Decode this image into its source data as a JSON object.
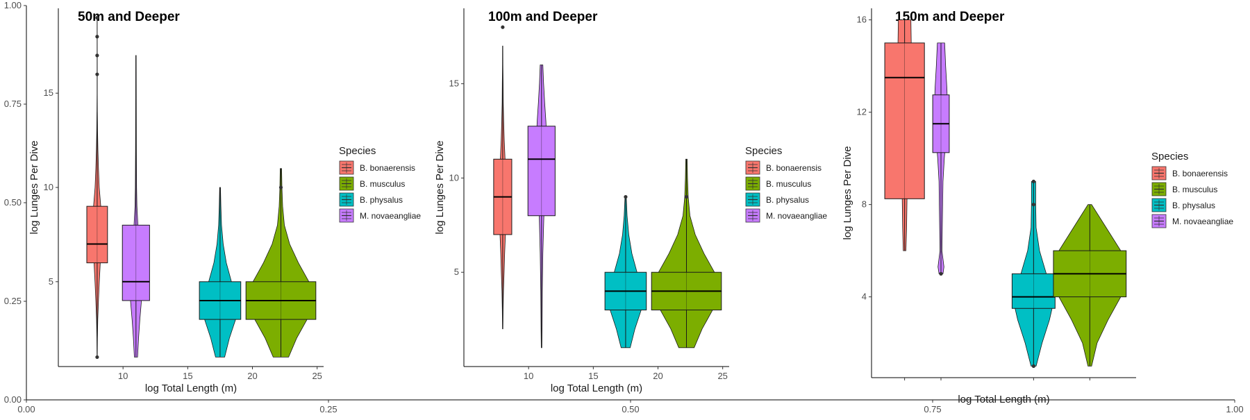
{
  "chart_data": {
    "type": "boxplot-violin",
    "outer_axes": {
      "x_ticks": [
        "0.00",
        "0.25",
        "0.50",
        "0.75",
        "1.00"
      ],
      "y_ticks": [
        "0.00",
        "0.25",
        "0.50",
        "0.75",
        "1.00"
      ],
      "xlim": [
        0,
        1
      ],
      "ylim": [
        0,
        1
      ]
    },
    "panels": [
      {
        "title": "50m and Deeper",
        "xlabel": "log Total Length (m)",
        "ylabel": "log Lunges Per Dive",
        "x_ticks": [
          "10",
          "15",
          "20",
          "25"
        ],
        "y_ticks": [
          "5",
          "10",
          "15"
        ],
        "xlim": [
          5,
          25.5
        ],
        "ylim": [
          0.5,
          19.5
        ],
        "legend": {
          "title": "Species",
          "entries": [
            "B. bonaerensis",
            "B. musculus",
            "B. physalus",
            "M. novaeangliae"
          ]
        },
        "series": [
          {
            "name": "B. bonaerensis",
            "color": "#F8766D",
            "x": 8,
            "box_width": 1.6,
            "violin_max_half_width": 0.4,
            "whisker_low": 1,
            "q1": 6,
            "median": 7,
            "q3": 9,
            "whisker_high": 14,
            "outliers": [
              1,
              16,
              17,
              18,
              19
            ],
            "violin": [
              [
                1,
                0.02
              ],
              [
                2,
                0.05
              ],
              [
                3,
                0.12
              ],
              [
                4,
                0.25
              ],
              [
                5,
                0.42
              ],
              [
                6,
                0.6
              ],
              [
                7,
                1.0
              ],
              [
                8,
                0.9
              ],
              [
                9,
                0.7
              ],
              [
                10,
                0.4
              ],
              [
                11,
                0.25
              ],
              [
                12,
                0.15
              ],
              [
                13,
                0.08
              ],
              [
                14,
                0.04
              ],
              [
                15,
                0.02
              ],
              [
                16,
                0.02
              ],
              [
                19,
                0.01
              ]
            ]
          },
          {
            "name": "M. novaeangliae",
            "color": "#C77CFF",
            "x": 11,
            "box_width": 2.1,
            "violin_max_half_width": 0.5,
            "whisker_low": 1,
            "q1": 4,
            "median": 5,
            "q3": 8,
            "whisker_high": 17,
            "outliers": [],
            "violin": [
              [
                1,
                0.25
              ],
              [
                2,
                0.4
              ],
              [
                3,
                0.6
              ],
              [
                4,
                0.85
              ],
              [
                5,
                1.0
              ],
              [
                6,
                0.8
              ],
              [
                7,
                0.5
              ],
              [
                8,
                0.3
              ],
              [
                9,
                0.15
              ],
              [
                10,
                0.1
              ],
              [
                12,
                0.06
              ],
              [
                15,
                0.04
              ],
              [
                17,
                0.03
              ]
            ]
          },
          {
            "name": "B. physalus",
            "color": "#00BFC4",
            "x": 17.5,
            "box_width": 3.2,
            "violin_max_half_width": 1.6,
            "whisker_low": 1,
            "q1": 3,
            "median": 4,
            "q3": 5,
            "whisker_high": 10,
            "outliers": [],
            "violin": [
              [
                1,
                0.22
              ],
              [
                2,
                0.45
              ],
              [
                3,
                0.75
              ],
              [
                4,
                1.0
              ],
              [
                5,
                0.55
              ],
              [
                6,
                0.3
              ],
              [
                7,
                0.15
              ],
              [
                8,
                0.07
              ],
              [
                9,
                0.04
              ],
              [
                10,
                0.02
              ]
            ]
          },
          {
            "name": "B. musculus",
            "color": "#7CAE00",
            "x": 22.2,
            "box_width": 5.4,
            "violin_max_half_width": 2.7,
            "whisker_low": 1,
            "q1": 3,
            "median": 4,
            "q3": 5,
            "whisker_high": 11,
            "outliers": [
              10
            ],
            "violin": [
              [
                1,
                0.22
              ],
              [
                2,
                0.45
              ],
              [
                3,
                0.75
              ],
              [
                4,
                1.0
              ],
              [
                5,
                0.8
              ],
              [
                6,
                0.5
              ],
              [
                7,
                0.25
              ],
              [
                8,
                0.1
              ],
              [
                9,
                0.05
              ],
              [
                10,
                0.03
              ],
              [
                11,
                0.02
              ]
            ]
          }
        ]
      },
      {
        "title": "100m and Deeper",
        "xlabel": "log Total Length (m)",
        "ylabel": "log Lunges Per Dive",
        "x_ticks": [
          "10",
          "15",
          "20",
          "25"
        ],
        "y_ticks": [
          "5",
          "10",
          "15"
        ],
        "xlim": [
          5,
          25.5
        ],
        "ylim": [
          0,
          19
        ],
        "legend": {
          "title": "Species",
          "entries": [
            "B. bonaerensis",
            "B. musculus",
            "B. physalus",
            "M. novaeangliae"
          ]
        },
        "series": [
          {
            "name": "B. bonaerensis",
            "color": "#F8766D",
            "x": 8,
            "box_width": 1.4,
            "violin_max_half_width": 0.3,
            "whisker_low": 2,
            "q1": 7,
            "median": 9,
            "q3": 11,
            "whisker_high": 17,
            "outliers": [
              18
            ],
            "violin": [
              [
                2,
                0.05
              ],
              [
                3,
                0.1
              ],
              [
                4,
                0.2
              ],
              [
                5,
                0.35
              ],
              [
                6,
                0.5
              ],
              [
                7,
                0.7
              ],
              [
                8,
                0.9
              ],
              [
                9,
                1.0
              ],
              [
                10,
                0.85
              ],
              [
                11,
                0.6
              ],
              [
                12,
                0.4
              ],
              [
                13,
                0.25
              ],
              [
                14,
                0.15
              ],
              [
                15,
                0.1
              ],
              [
                16,
                0.06
              ],
              [
                17,
                0.03
              ]
            ]
          },
          {
            "name": "M. novaeangliae",
            "color": "#C77CFF",
            "x": 11,
            "box_width": 2.1,
            "violin_max_half_width": 0.4,
            "whisker_low": 1,
            "q1": 8,
            "median": 11,
            "q3": 12.75,
            "whisker_high": 16,
            "outliers": [],
            "violin": [
              [
                1,
                0.06
              ],
              [
                2,
                0.1
              ],
              [
                4,
                0.15
              ],
              [
                6,
                0.25
              ],
              [
                8,
                0.45
              ],
              [
                10,
                0.7
              ],
              [
                11,
                0.9
              ],
              [
                12,
                1.0
              ],
              [
                13,
                0.85
              ],
              [
                14,
                0.6
              ],
              [
                15,
                0.4
              ],
              [
                16,
                0.25
              ]
            ]
          },
          {
            "name": "B. physalus",
            "color": "#00BFC4",
            "x": 17.5,
            "box_width": 3.2,
            "violin_max_half_width": 1.6,
            "whisker_low": 1,
            "q1": 3,
            "median": 4,
            "q3": 5,
            "whisker_high": 9,
            "outliers": [
              9
            ],
            "violin": [
              [
                1,
                0.22
              ],
              [
                2,
                0.45
              ],
              [
                3,
                0.75
              ],
              [
                4,
                1.0
              ],
              [
                5,
                0.55
              ],
              [
                6,
                0.3
              ],
              [
                7,
                0.15
              ],
              [
                8,
                0.07
              ],
              [
                9,
                0.03
              ]
            ]
          },
          {
            "name": "B. musculus",
            "color": "#7CAE00",
            "x": 22.2,
            "box_width": 5.4,
            "violin_max_half_width": 2.7,
            "whisker_low": 1,
            "q1": 3,
            "median": 4,
            "q3": 5,
            "whisker_high": 11,
            "outliers": [
              9
            ],
            "violin": [
              [
                1,
                0.22
              ],
              [
                2,
                0.45
              ],
              [
                3,
                0.75
              ],
              [
                4,
                1.0
              ],
              [
                5,
                0.8
              ],
              [
                6,
                0.5
              ],
              [
                7,
                0.25
              ],
              [
                8,
                0.1
              ],
              [
                9,
                0.05
              ],
              [
                10,
                0.03
              ],
              [
                11,
                0.02
              ]
            ]
          }
        ]
      },
      {
        "title": "150m and Deeper",
        "xlabel": "log Total Length (m)",
        "ylabel": "log Lunges Per Dive",
        "x_ticks": [],
        "y_ticks": [
          "4",
          "8",
          "12",
          "16"
        ],
        "xlim": [
          0,
          4
        ],
        "ylim": [
          0.5,
          16.5
        ],
        "legend": {
          "title": "Species",
          "entries": [
            "B. bonaerensis",
            "B. musculus",
            "B. physalus",
            "M. novaeangliae"
          ]
        },
        "series": [
          {
            "name": "B. bonaerensis",
            "color": "#F8766D",
            "x": 0.5,
            "box_width": 0.6,
            "violin_max_half_width": 0.1,
            "whisker_low": 6,
            "q1": 8.25,
            "median": 13.5,
            "q3": 15,
            "whisker_high": 16,
            "outliers": [],
            "violin": [
              [
                6,
                0.2
              ],
              [
                7,
                0.3
              ],
              [
                8,
                0.35
              ],
              [
                10,
                0.45
              ],
              [
                12,
                0.6
              ],
              [
                13,
                0.8
              ],
              [
                14,
                0.9
              ],
              [
                15,
                1.0
              ],
              [
                16,
                0.95
              ]
            ]
          },
          {
            "name": "M. novaeangliae",
            "color": "#C77CFF",
            "x": 1.05,
            "box_width": 0.25,
            "violin_max_half_width": 0.1,
            "whisker_low": 5,
            "q1": 10.25,
            "median": 11.5,
            "q3": 12.75,
            "whisker_high": 15,
            "outliers": [
              5
            ],
            "violin": [
              [
                5,
                0.3
              ],
              [
                5.3,
                0.45
              ],
              [
                6,
                0.15
              ],
              [
                8,
                0.25
              ],
              [
                9,
                0.3
              ],
              [
                10,
                0.5
              ],
              [
                11,
                0.8
              ],
              [
                12,
                1.0
              ],
              [
                13,
                0.9
              ],
              [
                14,
                0.7
              ],
              [
                15,
                0.55
              ]
            ]
          },
          {
            "name": "B. physalus",
            "color": "#00BFC4",
            "x": 2.45,
            "box_width": 0.65,
            "violin_max_half_width": 0.32,
            "whisker_low": 1,
            "q1": 3.5,
            "median": 4,
            "q3": 5,
            "whisker_high": 9,
            "outliers": [
              1,
              8,
              9
            ],
            "violin": [
              [
                1,
                0.12
              ],
              [
                2,
                0.4
              ],
              [
                3,
                0.75
              ],
              [
                4,
                1.0
              ],
              [
                5,
                0.6
              ],
              [
                6,
                0.28
              ],
              [
                7,
                0.12
              ],
              [
                8,
                0.1
              ],
              [
                9,
                0.1
              ]
            ]
          },
          {
            "name": "B. musculus",
            "color": "#7CAE00",
            "x": 3.3,
            "box_width": 1.1,
            "violin_max_half_width": 0.55,
            "whisker_low": 1,
            "q1": 4,
            "median": 5,
            "q3": 6,
            "whisker_high": 8,
            "outliers": [],
            "violin": [
              [
                1,
                0.05
              ],
              [
                2,
                0.2
              ],
              [
                3,
                0.5
              ],
              [
                4,
                0.85
              ],
              [
                5,
                1.0
              ],
              [
                6,
                0.85
              ],
              [
                7,
                0.45
              ],
              [
                8,
                0.05
              ]
            ]
          }
        ]
      }
    ]
  }
}
